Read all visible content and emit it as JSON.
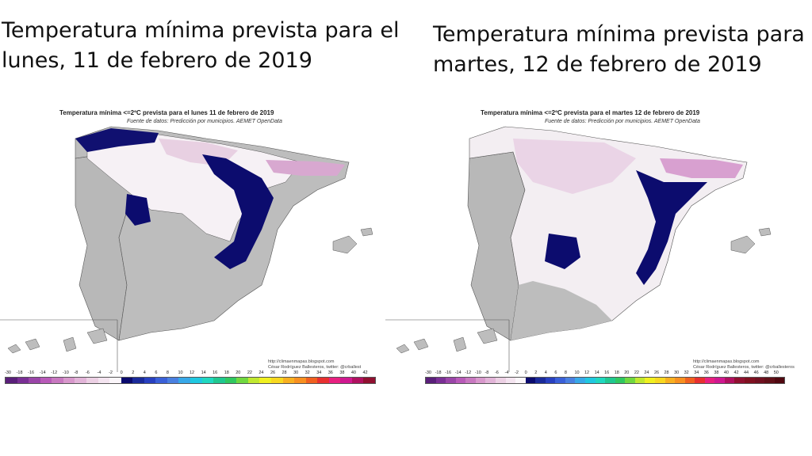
{
  "left": {
    "heading_line1": "Temperatura mínima prevista para el",
    "heading_line2": "lunes, 11 de febrero de 2019",
    "map_title": "Temperatura mínima <=2ºC prevista para el lunes 11 de febrero de 2019",
    "map_source": "Fuente de datos: Predicción por municipios. AEMET OpenData",
    "credit_line1": "http://climaenmapas.blogspot.com",
    "credit_line2": "César Rodríguez Ballesteros, twitter: @crballest",
    "legend_ticks": [
      "-30",
      "-18",
      "-16",
      "-14",
      "-12",
      "-10",
      "-8",
      "-6",
      "-4",
      "-2",
      "0",
      "2",
      "4",
      "6",
      "8",
      "10",
      "12",
      "14",
      "16",
      "18",
      "20",
      "22",
      "24",
      "26",
      "28",
      "30",
      "32",
      "34",
      "36",
      "38",
      "40",
      "42"
    ]
  },
  "right": {
    "heading_line1": "Temperatura mínima prevista para el",
    "heading_line2": "martes, 12 de febrero de 2019",
    "map_title": "Temperatura mínima <=2ºC prevista para el martes 12 de febrero de 2019",
    "map_source": "Fuente de datos: Predicción por municipios. AEMET OpenData",
    "credit_line1": "http://climaenmapas.blogspot.com",
    "credit_line2": "César Rodríguez Ballesteros, twitter: @crballesteros",
    "legend_ticks": [
      "-30",
      "-18",
      "-16",
      "-14",
      "-12",
      "-10",
      "-8",
      "-6",
      "-4",
      "-2",
      "0",
      "2",
      "4",
      "6",
      "8",
      "10",
      "12",
      "14",
      "16",
      "18",
      "20",
      "22",
      "24",
      "26",
      "28",
      "30",
      "32",
      "34",
      "36",
      "38",
      "40",
      "42",
      "44",
      "46",
      "48",
      "50"
    ]
  },
  "legend_colors": [
    "#5a1f7a",
    "#7a2f95",
    "#9a45a8",
    "#b85ab8",
    "#c878c0",
    "#d898cc",
    "#e2b4d8",
    "#ecd0e4",
    "#f4e4f0",
    "#fbf6fa",
    "#0a0a6e",
    "#1a2a9a",
    "#2840c0",
    "#3a60d8",
    "#4a80e0",
    "#38a8e8",
    "#20c8e0",
    "#20d8c0",
    "#20c890",
    "#30c860",
    "#70d840",
    "#c0e830",
    "#f0f020",
    "#f8d820",
    "#f8b020",
    "#f89020",
    "#f06020",
    "#e83030",
    "#e82080",
    "#d01890",
    "#b01060",
    "#901030",
    "#801020",
    "#701020",
    "#601018",
    "#500810"
  ]
}
